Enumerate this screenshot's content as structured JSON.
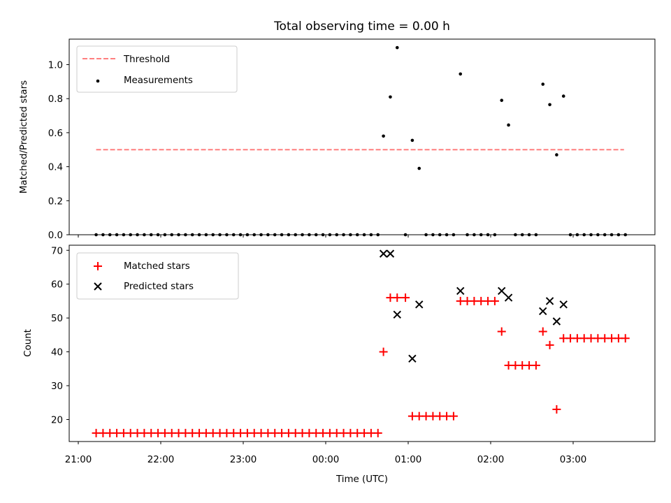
{
  "chart_data": [
    {
      "type": "scatter",
      "title": "Total observing time = 0.00 h",
      "xlabel": "",
      "ylabel": "Matched/Predicted stars",
      "ylim": [
        0,
        1.15
      ],
      "yticks": [
        "0.0",
        "0.2",
        "0.4",
        "0.6",
        "0.8",
        "1.0"
      ],
      "xticks": [
        "21:00",
        "22:00",
        "23:00",
        "00:00",
        "01:00",
        "02:00",
        "03:00"
      ],
      "legend": {
        "location": "upper left",
        "entries": [
          "Threshold",
          "Measurements"
        ]
      },
      "threshold": {
        "name": "Threshold",
        "value": 0.5,
        "x": [
          "21:13",
          "03:37"
        ],
        "color": "#ff7f7f",
        "style": "dashed"
      },
      "series": [
        {
          "name": "Measurements",
          "color": "#000000",
          "marker": "dot",
          "points": [
            [
              "21:13",
              0
            ],
            [
              "21:18",
              0
            ],
            [
              "21:23",
              0
            ],
            [
              "21:28",
              0
            ],
            [
              "21:33",
              0
            ],
            [
              "21:38",
              0
            ],
            [
              "21:43",
              0
            ],
            [
              "21:48",
              0
            ],
            [
              "21:53",
              0
            ],
            [
              "21:58",
              0
            ],
            [
              "22:03",
              0
            ],
            [
              "22:08",
              0
            ],
            [
              "22:13",
              0
            ],
            [
              "22:18",
              0
            ],
            [
              "22:23",
              0
            ],
            [
              "22:28",
              0
            ],
            [
              "22:33",
              0
            ],
            [
              "22:38",
              0
            ],
            [
              "22:43",
              0
            ],
            [
              "22:48",
              0
            ],
            [
              "22:53",
              0
            ],
            [
              "22:58",
              0
            ],
            [
              "23:03",
              0
            ],
            [
              "23:08",
              0
            ],
            [
              "23:13",
              0
            ],
            [
              "23:18",
              0
            ],
            [
              "23:23",
              0
            ],
            [
              "23:28",
              0
            ],
            [
              "23:33",
              0
            ],
            [
              "23:38",
              0
            ],
            [
              "23:43",
              0
            ],
            [
              "23:48",
              0
            ],
            [
              "23:53",
              0
            ],
            [
              "23:58",
              0
            ],
            [
              "00:03",
              0
            ],
            [
              "00:08",
              0
            ],
            [
              "00:13",
              0
            ],
            [
              "00:18",
              0
            ],
            [
              "00:23",
              0
            ],
            [
              "00:28",
              0
            ],
            [
              "00:33",
              0
            ],
            [
              "00:38",
              0
            ],
            [
              "00:42",
              0.58
            ],
            [
              "00:47",
              0.81
            ],
            [
              "00:52",
              1.1
            ],
            [
              "00:58",
              0
            ],
            [
              "01:03",
              0.555
            ],
            [
              "01:08",
              0.39
            ],
            [
              "01:13",
              0
            ],
            [
              "01:18",
              0
            ],
            [
              "01:23",
              0
            ],
            [
              "01:28",
              0
            ],
            [
              "01:33",
              0
            ],
            [
              "01:38",
              0.945
            ],
            [
              "01:43",
              0
            ],
            [
              "01:48",
              0
            ],
            [
              "01:53",
              0
            ],
            [
              "01:58",
              0
            ],
            [
              "02:03",
              0
            ],
            [
              "02:08",
              0.79
            ],
            [
              "02:13",
              0.645
            ],
            [
              "02:18",
              0
            ],
            [
              "02:23",
              0
            ],
            [
              "02:28",
              0
            ],
            [
              "02:33",
              0
            ],
            [
              "02:38",
              0.885
            ],
            [
              "02:43",
              0.765
            ],
            [
              "02:48",
              0.47
            ],
            [
              "02:53",
              0.815
            ],
            [
              "02:58",
              0
            ],
            [
              "03:03",
              0
            ],
            [
              "03:08",
              0
            ],
            [
              "03:13",
              0
            ],
            [
              "03:18",
              0
            ],
            [
              "03:23",
              0
            ],
            [
              "03:28",
              0
            ],
            [
              "03:33",
              0
            ],
            [
              "03:38",
              0
            ]
          ]
        }
      ]
    },
    {
      "type": "scatter",
      "title": "",
      "xlabel": "Time (UTC)",
      "ylabel": "Count",
      "ylim": [
        13.5,
        71.5
      ],
      "yticks": [
        "20",
        "30",
        "40",
        "50",
        "60",
        "70"
      ],
      "xticks": [
        "21:00",
        "22:00",
        "23:00",
        "00:00",
        "01:00",
        "02:00",
        "03:00"
      ],
      "legend": {
        "location": "upper left",
        "entries": [
          "Matched stars",
          "Predicted stars"
        ]
      },
      "series": [
        {
          "name": "Matched stars",
          "color": "#ff0000",
          "marker": "plus",
          "points": [
            [
              "21:13",
              16
            ],
            [
              "21:18",
              16
            ],
            [
              "21:23",
              16
            ],
            [
              "21:28",
              16
            ],
            [
              "21:33",
              16
            ],
            [
              "21:38",
              16
            ],
            [
              "21:43",
              16
            ],
            [
              "21:48",
              16
            ],
            [
              "21:53",
              16
            ],
            [
              "21:58",
              16
            ],
            [
              "22:03",
              16
            ],
            [
              "22:08",
              16
            ],
            [
              "22:13",
              16
            ],
            [
              "22:18",
              16
            ],
            [
              "22:23",
              16
            ],
            [
              "22:28",
              16
            ],
            [
              "22:33",
              16
            ],
            [
              "22:38",
              16
            ],
            [
              "22:43",
              16
            ],
            [
              "22:48",
              16
            ],
            [
              "22:53",
              16
            ],
            [
              "22:58",
              16
            ],
            [
              "23:03",
              16
            ],
            [
              "23:08",
              16
            ],
            [
              "23:13",
              16
            ],
            [
              "23:18",
              16
            ],
            [
              "23:23",
              16
            ],
            [
              "23:28",
              16
            ],
            [
              "23:33",
              16
            ],
            [
              "23:38",
              16
            ],
            [
              "23:43",
              16
            ],
            [
              "23:48",
              16
            ],
            [
              "23:53",
              16
            ],
            [
              "23:58",
              16
            ],
            [
              "00:03",
              16
            ],
            [
              "00:08",
              16
            ],
            [
              "00:13",
              16
            ],
            [
              "00:18",
              16
            ],
            [
              "00:23",
              16
            ],
            [
              "00:28",
              16
            ],
            [
              "00:33",
              16
            ],
            [
              "00:38",
              16
            ],
            [
              "00:42",
              40
            ],
            [
              "00:47",
              56
            ],
            [
              "00:52",
              56
            ],
            [
              "00:58",
              56
            ],
            [
              "01:03",
              21
            ],
            [
              "01:08",
              21
            ],
            [
              "01:13",
              21
            ],
            [
              "01:18",
              21
            ],
            [
              "01:23",
              21
            ],
            [
              "01:28",
              21
            ],
            [
              "01:33",
              21
            ],
            [
              "01:38",
              55
            ],
            [
              "01:43",
              55
            ],
            [
              "01:48",
              55
            ],
            [
              "01:53",
              55
            ],
            [
              "01:58",
              55
            ],
            [
              "02:03",
              55
            ],
            [
              "02:08",
              46
            ],
            [
              "02:13",
              36
            ],
            [
              "02:18",
              36
            ],
            [
              "02:23",
              36
            ],
            [
              "02:28",
              36
            ],
            [
              "02:33",
              36
            ],
            [
              "02:38",
              46
            ],
            [
              "02:43",
              42
            ],
            [
              "02:48",
              23
            ],
            [
              "02:53",
              44
            ],
            [
              "02:58",
              44
            ],
            [
              "03:03",
              44
            ],
            [
              "03:08",
              44
            ],
            [
              "03:13",
              44
            ],
            [
              "03:18",
              44
            ],
            [
              "03:23",
              44
            ],
            [
              "03:28",
              44
            ],
            [
              "03:33",
              44
            ],
            [
              "03:38",
              44
            ]
          ]
        },
        {
          "name": "Predicted stars",
          "color": "#000000",
          "marker": "x",
          "points": [
            [
              "00:42",
              69
            ],
            [
              "00:47",
              69
            ],
            [
              "00:52",
              51
            ],
            [
              "01:03",
              38
            ],
            [
              "01:08",
              54
            ],
            [
              "01:38",
              58
            ],
            [
              "02:08",
              58
            ],
            [
              "02:13",
              56
            ],
            [
              "02:38",
              52
            ],
            [
              "02:43",
              55
            ],
            [
              "02:48",
              49
            ],
            [
              "02:53",
              54
            ]
          ]
        }
      ]
    }
  ]
}
